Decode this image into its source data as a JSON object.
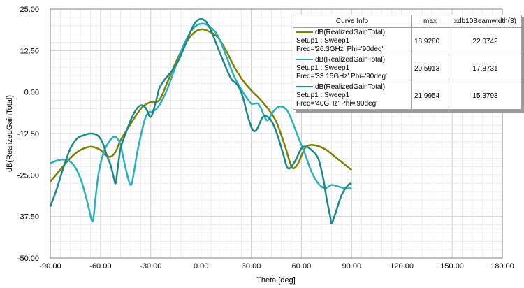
{
  "chart_data": {
    "type": "line",
    "xlabel": "Theta [deg]",
    "ylabel": "dB(RealizedGainTotal)",
    "xlim": [
      -90,
      180
    ],
    "ylim": [
      -50,
      25
    ],
    "x_ticks": [
      "-90.00",
      "-60.00",
      "-30.00",
      "0.00",
      "30.00",
      "60.00",
      "90.00",
      "120.00",
      "150.00",
      "180.00"
    ],
    "y_ticks": [
      "25.00",
      "12.50",
      "0.00",
      "-12.50",
      "-25.00",
      "-37.50",
      "-50.00"
    ],
    "grid": true,
    "legend_placement": "top-right",
    "legend_headers": {
      "curve": "Curve Info",
      "max": "max",
      "beam": "xdb10Beamwidth(3)"
    },
    "series": [
      {
        "legend_line1": "dB(RealizedGainTotal)",
        "legend_line2": "Setup1 : Sweep1",
        "legend_line3": "Freq='26.3GHz' Phi='90deg'",
        "max": "18.9280",
        "beamwidth": "22.0742",
        "color": "#808000",
        "x": [
          -90,
          -85,
          -80,
          -75,
          -70,
          -65,
          -60,
          -57,
          -54,
          -51,
          -48,
          -45,
          -40,
          -35,
          -30,
          -25,
          -20,
          -15,
          -10,
          -5,
          0,
          5,
          10,
          15,
          20,
          25,
          30,
          35,
          40,
          45,
          50,
          53,
          55,
          58,
          62,
          65,
          70,
          75,
          80,
          85,
          90
        ],
        "y": [
          -27,
          -24,
          -21,
          -18.5,
          -17,
          -16.5,
          -17.5,
          -19,
          -19.5,
          -18,
          -14.5,
          -12,
          -8,
          -4.5,
          -3,
          -2.5,
          3,
          9,
          14,
          17.5,
          18.9,
          18.2,
          16.5,
          12.5,
          7.5,
          3.5,
          0.5,
          -2,
          -5,
          -9,
          -16,
          -21,
          -23,
          -21.5,
          -17,
          -16,
          -16.3,
          -17.5,
          -19.5,
          -21.5,
          -23.5
        ]
      },
      {
        "legend_line1": "dB(RealizedGainTotal)",
        "legend_line2": "Setup1 : Sweep1",
        "legend_line3": "Freq='33.15GHz' Phi='90deg'",
        "max": "20.5913",
        "beamwidth": "17.8731",
        "color": "#26b0c0",
        "x": [
          -90,
          -85,
          -80,
          -76,
          -72,
          -69,
          -67,
          -65,
          -64,
          -63,
          -61,
          -58,
          -55,
          -52,
          -50,
          -48,
          -45,
          -42,
          -40,
          -38,
          -35,
          -33,
          -31,
          -29,
          -25,
          -20,
          -15,
          -10,
          -5,
          0,
          5,
          10,
          15,
          20,
          25,
          28,
          30,
          32,
          34,
          36,
          38,
          40,
          43,
          46,
          49,
          52,
          55,
          58,
          62,
          66,
          70,
          74,
          78,
          82,
          86,
          90
        ],
        "y": [
          -21.5,
          -20.5,
          -20.5,
          -22,
          -26,
          -31,
          -35,
          -39,
          -37,
          -32,
          -24,
          -18,
          -15,
          -13.5,
          -14,
          -16,
          -23,
          -28,
          -24,
          -18,
          -11,
          -7.5,
          -6,
          -6,
          -4,
          1,
          8,
          14.5,
          19,
          20.6,
          19.8,
          17,
          11,
          4.5,
          0,
          -2.2,
          -3.5,
          -3.5,
          -3.5,
          -5,
          -7.5,
          -8.5,
          -6,
          -4.5,
          -4.5,
          -6,
          -9.5,
          -13.5,
          -18.5,
          -24,
          -27.5,
          -29,
          -28,
          -28.5,
          -29,
          -29
        ]
      },
      {
        "legend_line1": "dB(RealizedGainTotal)",
        "legend_line2": "Setup1 : Sweep1",
        "legend_line3": "Freq='40GHz' Phi='90deg'",
        "max": "21.9954",
        "beamwidth": "15.3793",
        "color": "#1a8888",
        "x": [
          -90,
          -86,
          -82,
          -78,
          -74,
          -70,
          -66,
          -62,
          -59,
          -56,
          -54,
          -52,
          -51,
          -50,
          -48,
          -45,
          -42,
          -39,
          -36,
          -33,
          -30,
          -27,
          -25,
          -22,
          -18,
          -14,
          -10,
          -6,
          -3,
          0,
          3,
          6,
          10,
          14,
          18,
          22,
          25,
          27,
          29,
          31,
          33,
          35,
          37,
          40,
          43,
          46,
          49,
          52,
          56,
          60,
          63,
          66,
          70,
          73,
          75,
          77,
          78,
          80,
          84,
          88,
          90
        ],
        "y": [
          -34.5,
          -29,
          -22.5,
          -17,
          -14,
          -13,
          -12.5,
          -13,
          -15,
          -19.5,
          -22,
          -26,
          -27.5,
          -24,
          -17,
          -12.5,
          -8.5,
          -5.5,
          -4,
          -4.8,
          -7.5,
          -3,
          1,
          3.5,
          6,
          9,
          13.5,
          18.5,
          21.2,
          22,
          21.2,
          18.5,
          13.5,
          8.5,
          4,
          2,
          -1.5,
          -5.5,
          -9,
          -11.5,
          -11.5,
          -9.5,
          -7.5,
          -7.5,
          -9.5,
          -13.5,
          -18.5,
          -23,
          -21,
          -17,
          -16.5,
          -17.5,
          -20,
          -26,
          -32,
          -37,
          -39.5,
          -37,
          -31,
          -28,
          -27.5
        ]
      }
    ]
  }
}
